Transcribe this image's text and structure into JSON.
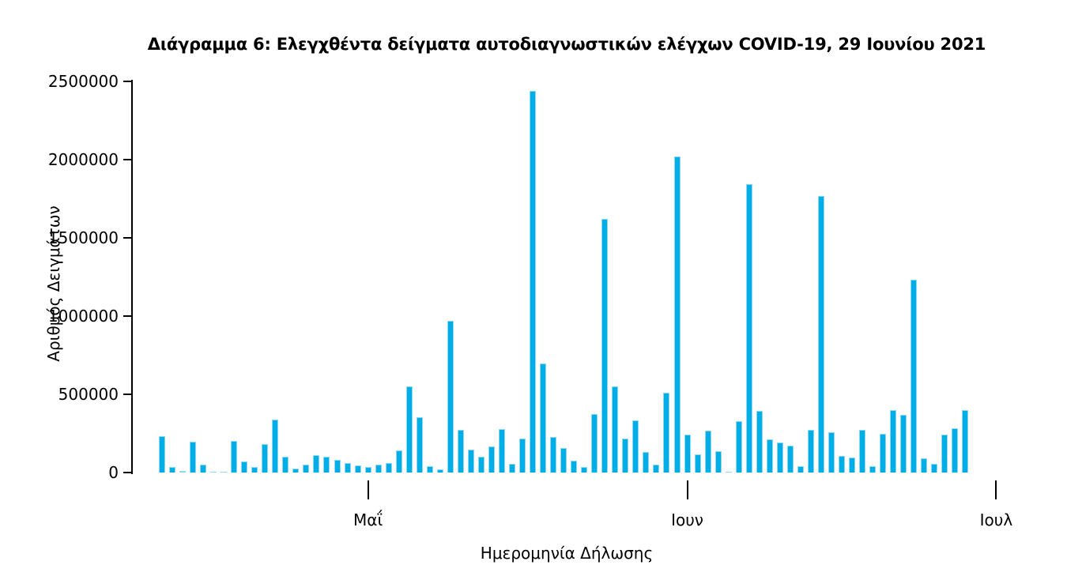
{
  "title": "Διάγραμμα 6: Ελεγχθέντα δείγματα αυτοδιαγνωστικών ελέγχων COVID-19, 29 Ιουνίου 2021",
  "chart_data": {
    "type": "bar",
    "title": "Διάγραμμα 6: Ελεγχθέντα δείγματα αυτοδιαγνωστικών ελέγχων COVID-19, 29 Ιουνίου 2021",
    "xlabel": "Ημερομηνία Δήλωσης",
    "ylabel": "Αριθμός Δειγμάτων",
    "ylim": [
      0,
      2500000
    ],
    "yticks": [
      0,
      500000,
      1000000,
      1500000,
      2000000,
      2500000
    ],
    "ytick_labels": [
      "0",
      "500000",
      "1000000",
      "1500000",
      "2000000",
      "2500000"
    ],
    "grid": false,
    "legend": null,
    "bar_color": "#00AEE7",
    "bar_edge_color": "#8fd8f3",
    "x_unit": "day",
    "n_bars": 79,
    "xticks": [
      {
        "label": "Μαΐ",
        "bar_index": 20
      },
      {
        "label": "Ιουν",
        "bar_index": 51
      },
      {
        "label": "Ιουλ",
        "bar_index": 81
      }
    ],
    "values": [
      230000,
      34000,
      9000,
      196000,
      50000,
      6000,
      2000,
      200000,
      70000,
      35000,
      182000,
      340000,
      103000,
      27000,
      52000,
      110000,
      103000,
      81000,
      59000,
      45000,
      37000,
      51000,
      62000,
      142000,
      552000,
      353000,
      42000,
      20000,
      970000,
      275000,
      148000,
      102000,
      168000,
      279000,
      55000,
      219000,
      2440000,
      695000,
      227000,
      159000,
      75000,
      33000,
      375000,
      1620000,
      553000,
      215000,
      333000,
      131000,
      50000,
      510000,
      2020000,
      240000,
      114000,
      269000,
      136000,
      3000,
      328000,
      1845000,
      396000,
      210000,
      193000,
      173000,
      38000,
      271000,
      1770000,
      257000,
      105000,
      94000,
      274000,
      38000,
      249000,
      401000,
      370000,
      1230000,
      92000,
      55000,
      240000,
      282000,
      400000
    ]
  }
}
